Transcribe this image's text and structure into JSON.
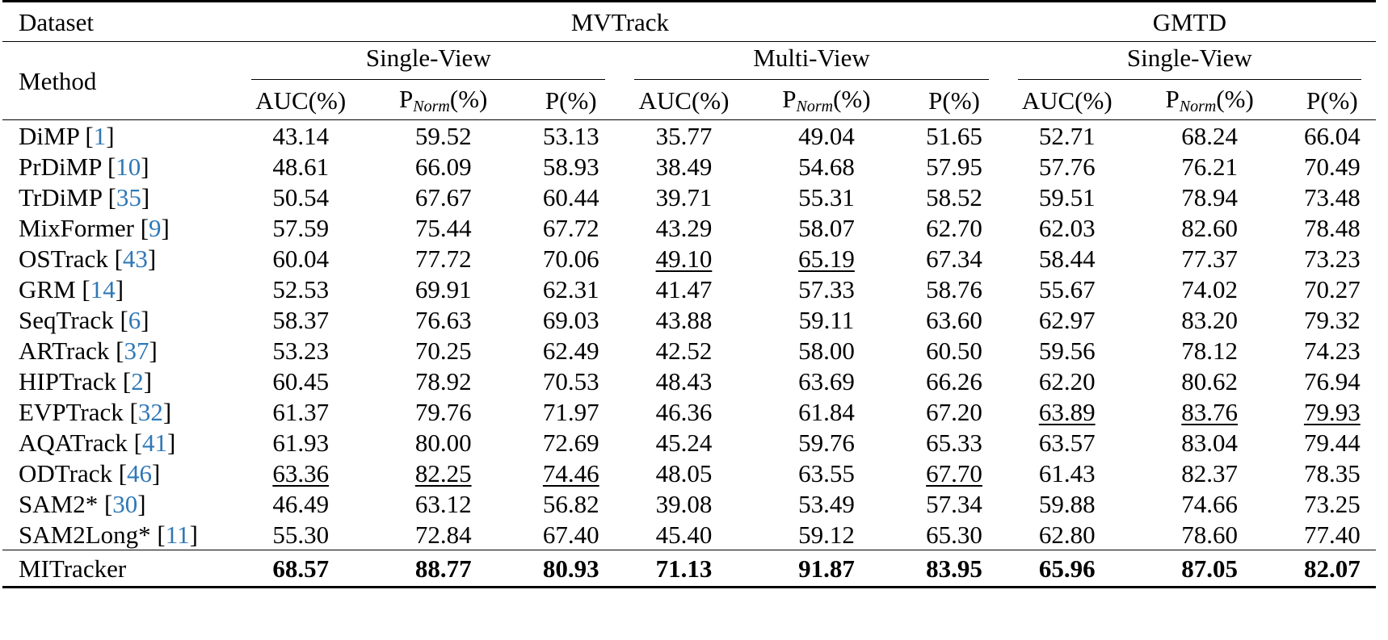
{
  "header": {
    "dataset_label": "Dataset",
    "method_label": "Method",
    "datasets": [
      "MVTrack",
      "GMTD"
    ],
    "groups": [
      "Single-View",
      "Multi-View",
      "Single-View"
    ],
    "metric_auc": "AUC(%)",
    "metric_pnorm_base": "P",
    "metric_pnorm_sub": "Norm",
    "metric_pnorm_suffix": "(%)",
    "metric_p": "P(%)"
  },
  "rows": [
    {
      "name": "DiMP",
      "ref": "1",
      "values": [
        "43.14",
        "59.52",
        "53.13",
        "35.77",
        "49.04",
        "51.65",
        "52.71",
        "68.24",
        "66.04"
      ]
    },
    {
      "name": "PrDiMP",
      "ref": "10",
      "values": [
        "48.61",
        "66.09",
        "58.93",
        "38.49",
        "54.68",
        "57.95",
        "57.76",
        "76.21",
        "70.49"
      ]
    },
    {
      "name": "TrDiMP",
      "ref": "35",
      "values": [
        "50.54",
        "67.67",
        "60.44",
        "39.71",
        "55.31",
        "58.52",
        "59.51",
        "78.94",
        "73.48"
      ]
    },
    {
      "name": "MixFormer",
      "ref": "9",
      "values": [
        "57.59",
        "75.44",
        "67.72",
        "43.29",
        "58.07",
        "62.70",
        "62.03",
        "82.60",
        "78.48"
      ]
    },
    {
      "name": "OSTrack",
      "ref": "43",
      "values": [
        "60.04",
        "77.72",
        "70.06",
        "49.10",
        "65.19",
        "67.34",
        "58.44",
        "77.37",
        "73.23"
      ]
    },
    {
      "name": "GRM",
      "ref": "14",
      "values": [
        "52.53",
        "69.91",
        "62.31",
        "41.47",
        "57.33",
        "58.76",
        "55.67",
        "74.02",
        "70.27"
      ]
    },
    {
      "name": "SeqTrack",
      "ref": "6",
      "values": [
        "58.37",
        "76.63",
        "69.03",
        "43.88",
        "59.11",
        "63.60",
        "62.97",
        "83.20",
        "79.32"
      ]
    },
    {
      "name": "ARTrack",
      "ref": "37",
      "values": [
        "53.23",
        "70.25",
        "62.49",
        "42.52",
        "58.00",
        "60.50",
        "59.56",
        "78.12",
        "74.23"
      ]
    },
    {
      "name": "HIPTrack",
      "ref": "2",
      "values": [
        "60.45",
        "78.92",
        "70.53",
        "48.43",
        "63.69",
        "66.26",
        "62.20",
        "80.62",
        "76.94"
      ]
    },
    {
      "name": "EVPTrack",
      "ref": "32",
      "values": [
        "61.37",
        "79.76",
        "71.97",
        "46.36",
        "61.84",
        "67.20",
        "63.89",
        "83.76",
        "79.93"
      ]
    },
    {
      "name": "AQATrack",
      "ref": "41",
      "values": [
        "61.93",
        "80.00",
        "72.69",
        "45.24",
        "59.76",
        "65.33",
        "63.57",
        "83.04",
        "79.44"
      ]
    },
    {
      "name": "ODTrack",
      "ref": "46",
      "values": [
        "63.36",
        "82.25",
        "74.46",
        "48.05",
        "63.55",
        "67.70",
        "61.43",
        "82.37",
        "78.35"
      ]
    },
    {
      "name": "SAM2*",
      "ref": "30",
      "values": [
        "46.49",
        "63.12",
        "56.82",
        "39.08",
        "53.49",
        "57.34",
        "59.88",
        "74.66",
        "73.25"
      ]
    },
    {
      "name": "SAM2Long*",
      "ref": "11",
      "values": [
        "55.30",
        "72.84",
        "67.40",
        "45.40",
        "59.12",
        "65.30",
        "62.80",
        "78.60",
        "77.40"
      ]
    }
  ],
  "final_row": {
    "name": "MITracker",
    "values": [
      "68.57",
      "88.77",
      "80.93",
      "71.13",
      "91.87",
      "83.95",
      "65.96",
      "87.05",
      "82.07"
    ]
  },
  "underlined": [
    [
      4,
      3
    ],
    [
      4,
      4
    ],
    [
      9,
      6
    ],
    [
      9,
      7
    ],
    [
      9,
      8
    ],
    [
      11,
      0
    ],
    [
      11,
      1
    ],
    [
      11,
      2
    ],
    [
      11,
      5
    ]
  ]
}
